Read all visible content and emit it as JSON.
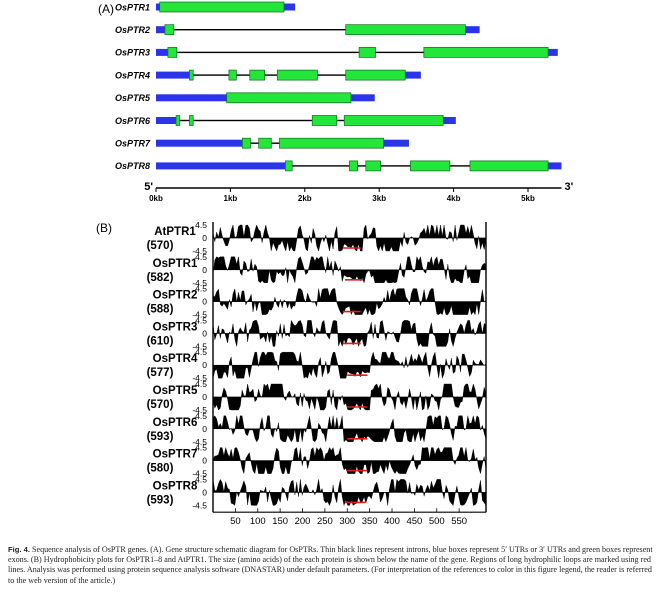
{
  "panel_a": {
    "label": "(A)",
    "colors": {
      "utr": "#2b34e8",
      "exon": "#22e63a",
      "intron": "#000000"
    },
    "genes": [
      {
        "name": "OsPTR1",
        "utr5": [
          0,
          0.05
        ],
        "utr3": [
          1.72,
          1.87
        ],
        "exons": [
          [
            0.05,
            1.72
          ]
        ]
      },
      {
        "name": "OsPTR2",
        "utr5": [
          0,
          0.12
        ],
        "utr3": [
          4.16,
          4.35
        ],
        "exons": [
          [
            0.12,
            0.24
          ],
          [
            2.55,
            4.16
          ]
        ]
      },
      {
        "name": "OsPTR3",
        "utr5": [
          0,
          0.16
        ],
        "utr3": [
          5.27,
          5.4
        ],
        "exons": [
          [
            0.16,
            0.28
          ],
          [
            2.73,
            2.95
          ],
          [
            3.6,
            5.27
          ]
        ]
      },
      {
        "name": "OsPTR4",
        "utr5": [
          0,
          0.45
        ],
        "utr3": [
          3.35,
          3.56
        ],
        "exons": [
          [
            0.45,
            0.5
          ],
          [
            0.98,
            1.08
          ],
          [
            1.26,
            1.46
          ],
          [
            1.63,
            2.17
          ],
          [
            2.55,
            3.35
          ]
        ]
      },
      {
        "name": "OsPTR5",
        "utr5": [
          0,
          0.95
        ],
        "utr3": [
          2.62,
          2.94
        ],
        "exons": [
          [
            0.95,
            2.62
          ]
        ]
      },
      {
        "name": "OsPTR6",
        "utr5": [
          0,
          0.27
        ],
        "utr3": [
          3.86,
          4.03
        ],
        "exons": [
          [
            0.27,
            0.32
          ],
          [
            0.45,
            0.5
          ],
          [
            2.1,
            2.43
          ],
          [
            2.53,
            3.86
          ]
        ]
      },
      {
        "name": "OsPTR7",
        "utr5": [
          0,
          1.16
        ],
        "utr3": [
          3.06,
          3.4
        ],
        "exons": [
          [
            1.16,
            1.27
          ],
          [
            1.38,
            1.55
          ],
          [
            1.66,
            3.06
          ]
        ]
      },
      {
        "name": "OsPTR8",
        "utr5": [
          0,
          1.74
        ],
        "utr3": [
          5.27,
          5.45
        ],
        "exons": [
          [
            1.74,
            1.83
          ],
          [
            2.6,
            2.71
          ],
          [
            2.82,
            3.02
          ],
          [
            3.42,
            3.95
          ],
          [
            4.22,
            5.27
          ]
        ]
      }
    ],
    "axis": {
      "unit_kb": 5.45,
      "ticks": [
        {
          "v": 0,
          "label": "0kb"
        },
        {
          "v": 1,
          "label": "1kb"
        },
        {
          "v": 2,
          "label": "2kb"
        },
        {
          "v": 3,
          "label": "3kb"
        },
        {
          "v": 4,
          "label": "4kb"
        },
        {
          "v": 5,
          "label": "5kb"
        }
      ],
      "start_label": "5'",
      "end_label": "3'"
    }
  },
  "panel_b": {
    "label": "(B)",
    "proteins": [
      {
        "name": "AtPTR1",
        "length": "(570)",
        "loop": [
          290,
          330
        ]
      },
      {
        "name": "OsPTR1",
        "length": "(582)",
        "loop": [
          295,
          335
        ]
      },
      {
        "name": "OsPTR2",
        "length": "(588)",
        "loop": [
          290,
          330
        ]
      },
      {
        "name": "OsPTR3",
        "length": "(610)",
        "loop": [
          290,
          330
        ]
      },
      {
        "name": "OsPTR4",
        "length": "(577)",
        "loop": [
          300,
          345
        ]
      },
      {
        "name": "OsPTR5",
        "length": "(570)",
        "loop": [
          300,
          345
        ]
      },
      {
        "name": "OsPTR6",
        "length": "(593)",
        "loop": [
          300,
          345
        ]
      },
      {
        "name": "OsPTR7",
        "length": "(580)",
        "loop": [
          300,
          345
        ]
      },
      {
        "name": "OsPTR8",
        "length": "(593)",
        "loop": [
          295,
          340
        ]
      }
    ],
    "y_ticks": [
      "4.5",
      "0",
      "-4.5"
    ],
    "x_ticks": [
      50,
      100,
      150,
      200,
      250,
      300,
      350,
      400,
      450,
      500,
      550
    ],
    "x_range": [
      0,
      610
    ],
    "y_range": [
      -4.5,
      4.5
    ],
    "loop_color": "#e21b1b"
  },
  "caption": {
    "lead": "Fig. 4.",
    "text": " Sequence analysis of OsPTR genes. (A). Gene structure schematic diagram for OsPTRs. Thin black lines represent introns, blue boxes represent 5′ UTRs or 3′ UTRs and green boxes represent exons. (B) Hydrophobicity plots for OsPTR1–8 and AtPTR1. The size (amino acids) of the each protein is shown below the name of the gene. Regions of long hydrophilic loops are marked using red lines. Analysis was performed using protein sequence analysis software (DNASTAR) under default parameters. (For interpretation of the references to color in this figure legend, the reader is referred to the web version of the article.)"
  }
}
